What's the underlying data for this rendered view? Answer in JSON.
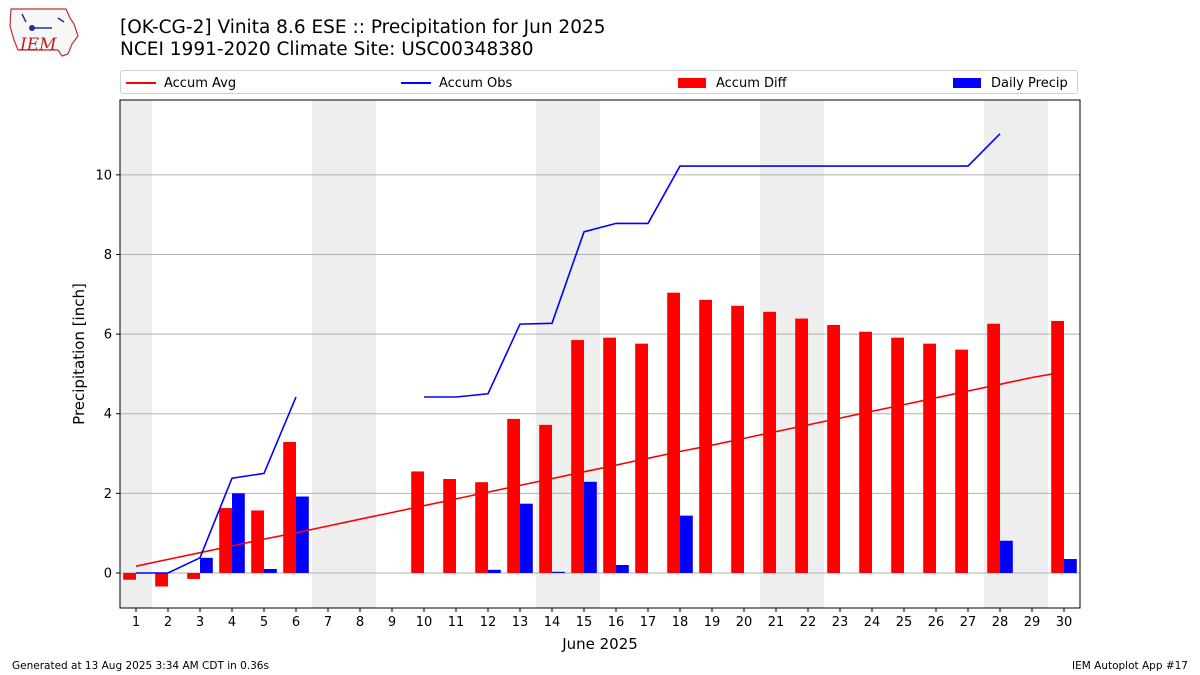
{
  "header": {
    "title_line1": "[OK-CG-2] Vinita 8.6 ESE :: Precipitation for Jun 2025",
    "title_line2": "NCEI 1991-2020 Climate Site: USC00348380",
    "logo_text": "IEM"
  },
  "footer": {
    "generated": "Generated at 13 Aug 2025 3:34 AM CDT in 0.36s",
    "app": "IEM Autoplot App #17"
  },
  "colors": {
    "accum_avg": "#ff0000",
    "accum_obs": "#0000ff",
    "accum_diff": "#ff0000",
    "daily_precip": "#0000ff",
    "weekend_shade": "#eeeeee",
    "grid": "#b0b0b0"
  },
  "chart_data": {
    "type": "bar",
    "xlabel": "June 2025",
    "ylabel": "Precipitation [inch]",
    "ylim": [
      -0.88,
      11.88
    ],
    "yticks": [
      0,
      2,
      4,
      6,
      8,
      10
    ],
    "grid": "horizontal",
    "legend_position": "top",
    "days": [
      1,
      2,
      3,
      4,
      5,
      6,
      7,
      8,
      9,
      10,
      11,
      12,
      13,
      14,
      15,
      16,
      17,
      18,
      19,
      20,
      21,
      22,
      23,
      24,
      25,
      26,
      27,
      28,
      29,
      30
    ],
    "weekend_shaded_days": [
      1,
      7,
      8,
      14,
      15,
      21,
      22,
      28,
      29
    ],
    "series": [
      {
        "name": "Accum Avg",
        "kind": "line",
        "values": [
          0.17,
          0.34,
          0.51,
          0.68,
          0.85,
          1.01,
          1.18,
          1.35,
          1.52,
          1.69,
          1.86,
          2.03,
          2.2,
          2.37,
          2.54,
          2.71,
          2.88,
          3.05,
          3.21,
          3.38,
          3.55,
          3.72,
          3.89,
          4.06,
          4.23,
          4.4,
          4.57,
          4.74,
          4.91,
          5.05
        ]
      },
      {
        "name": "Accum Obs",
        "kind": "line",
        "values": [
          0.0,
          0.0,
          0.38,
          2.38,
          2.5,
          4.42,
          null,
          null,
          null,
          4.42,
          4.42,
          4.5,
          6.25,
          6.27,
          8.57,
          8.78,
          8.78,
          10.22,
          10.22,
          10.22,
          10.22,
          10.22,
          10.22,
          10.22,
          10.22,
          10.22,
          10.22,
          11.03,
          null,
          null
        ]
      },
      {
        "name": "Accum Diff",
        "kind": "bar",
        "values": [
          -0.17,
          -0.34,
          -0.15,
          1.63,
          1.57,
          3.29,
          null,
          null,
          null,
          2.55,
          2.36,
          2.28,
          3.87,
          3.72,
          5.85,
          5.91,
          5.76,
          7.04,
          6.86,
          6.71,
          6.56,
          6.39,
          6.23,
          6.06,
          5.91,
          5.76,
          5.61,
          6.26,
          null,
          6.33
        ]
      },
      {
        "name": "Daily Precip",
        "kind": "bar",
        "values": [
          0.0,
          0.0,
          0.38,
          2.0,
          0.1,
          1.92,
          null,
          null,
          null,
          0.0,
          0.0,
          0.08,
          1.74,
          0.03,
          2.29,
          0.2,
          0.0,
          1.44,
          0.0,
          0.0,
          0.0,
          0.0,
          0.0,
          0.0,
          0.0,
          0.0,
          0.0,
          0.81,
          null,
          0.35
        ]
      }
    ]
  }
}
